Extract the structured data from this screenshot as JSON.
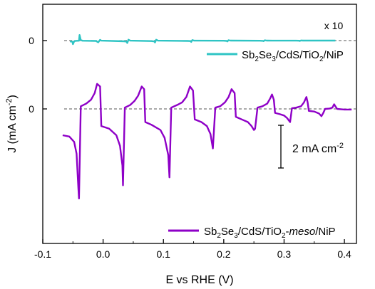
{
  "chart_data": {
    "type": "line",
    "xlabel": "E vs RHE (V)",
    "ylabel": "J (mA cm⁻²)",
    "xlim": [
      -0.1,
      0.42
    ],
    "x_ticks": [
      "-0.1",
      "0.0",
      "0.1",
      "0.2",
      "0.3",
      "0.4"
    ],
    "x_tick_values": [
      -0.1,
      0.0,
      0.1,
      0.2,
      0.3,
      0.4
    ],
    "y_ticks": [
      "0",
      "0"
    ],
    "multiplier_label": "x 10",
    "scale_bar_label": "2 mA cm⁻²",
    "scale_bar_value": 2,
    "zero_lines": "dashed",
    "series": [
      {
        "name": "Sb2Se3/CdS/TiO2/NiP",
        "legend": {
          "parts": [
            {
              "t": "Sb",
              "s": false
            },
            {
              "t": "2",
              "s": true
            },
            {
              "t": "Se",
              "s": false
            },
            {
              "t": "3",
              "s": true
            },
            {
              "t": "/CdS/TiO",
              "s": false
            },
            {
              "t": "2",
              "s": true
            },
            {
              "t": "/NiP",
              "s": false
            }
          ]
        },
        "color": "#2ec4c4",
        "baseline": 0,
        "scale": 10,
        "points": [
          [
            -0.055,
            -0.1
          ],
          [
            -0.051,
            -0.12
          ],
          [
            -0.05,
            -0.42
          ],
          [
            -0.048,
            -0.1
          ],
          [
            -0.046,
            -0.03
          ],
          [
            -0.04,
            -0.02
          ],
          [
            -0.039,
            0.65
          ],
          [
            -0.037,
            0.05
          ],
          [
            -0.034,
            -0.02
          ],
          [
            -0.012,
            -0.04
          ],
          [
            -0.008,
            -0.2
          ],
          [
            -0.005,
            0.08
          ],
          [
            -0.003,
            -0.01
          ],
          [
            0.035,
            -0.08
          ],
          [
            0.039,
            -0.12
          ],
          [
            0.04,
            -0.28
          ],
          [
            0.042,
            0.1
          ],
          [
            0.045,
            -0.01
          ],
          [
            0.08,
            -0.06
          ],
          [
            0.085,
            -0.1
          ],
          [
            0.086,
            -0.22
          ],
          [
            0.088,
            0.1
          ],
          [
            0.091,
            -0.01
          ],
          [
            0.14,
            -0.04
          ],
          [
            0.145,
            -0.06
          ],
          [
            0.146,
            -0.16
          ],
          [
            0.148,
            0.06
          ],
          [
            0.151,
            -0.01
          ],
          [
            0.2,
            -0.02
          ],
          [
            0.205,
            -0.04
          ],
          [
            0.206,
            -0.1
          ],
          [
            0.208,
            0.04
          ],
          [
            0.211,
            0.0
          ],
          [
            0.26,
            -0.02
          ],
          [
            0.265,
            -0.03
          ],
          [
            0.266,
            -0.07
          ],
          [
            0.268,
            0.03
          ],
          [
            0.271,
            0.0
          ],
          [
            0.32,
            -0.01
          ],
          [
            0.325,
            -0.02
          ],
          [
            0.326,
            -0.05
          ],
          [
            0.328,
            0.02
          ],
          [
            0.331,
            0.0
          ],
          [
            0.385,
            0.0
          ]
        ]
      },
      {
        "name": "Sb2Se3/CdS/TiO2-meso/NiP",
        "legend": {
          "parts": [
            {
              "t": "Sb",
              "s": false
            },
            {
              "t": "2",
              "s": true
            },
            {
              "t": "Se",
              "s": false
            },
            {
              "t": "3",
              "s": true
            },
            {
              "t": "/CdS/TiO",
              "s": false
            },
            {
              "t": "2",
              "s": true
            },
            {
              "t": "-",
              "s": false
            },
            {
              "t": "meso",
              "s": false,
              "i": true
            },
            {
              "t": "/NiP",
              "s": false
            }
          ]
        },
        "color": "#8e00c7",
        "baseline": 0,
        "scale": 1,
        "segments": [
          {
            "start": [
              -0.067,
              -2.0
            ],
            "pts": [
              [
                -0.056,
                -2.1
              ],
              [
                -0.048,
                -2.5
              ],
              [
                -0.044,
                -3.4
              ],
              [
                -0.041,
                -6.0
              ],
              [
                -0.04,
                -6.8
              ]
            ]
          },
          {
            "start": [
              -0.037,
              0.2
            ],
            "pts": [
              [
                -0.028,
                0.4
              ],
              [
                -0.02,
                0.7
              ],
              [
                -0.014,
                1.2
              ],
              [
                -0.01,
                1.9
              ],
              [
                -0.005,
                1.7
              ],
              [
                -0.003,
                -1.3
              ],
              [
                0.01,
                -1.5
              ],
              [
                0.022,
                -2.0
              ],
              [
                0.028,
                -2.8
              ],
              [
                0.032,
                -4.3
              ],
              [
                0.033,
                -5.8
              ]
            ]
          },
          {
            "start": [
              0.036,
              0.1
            ],
            "pts": [
              [
                0.045,
                0.3
              ],
              [
                0.052,
                0.6
              ],
              [
                0.058,
                1.0
              ],
              [
                0.064,
                1.7
              ],
              [
                0.068,
                1.5
              ],
              [
                0.07,
                -1.0
              ],
              [
                0.08,
                -1.2
              ],
              [
                0.095,
                -1.6
              ],
              [
                0.102,
                -2.2
              ],
              [
                0.108,
                -3.5
              ],
              [
                0.11,
                -5.2
              ]
            ]
          },
          {
            "start": [
              0.113,
              0.1
            ],
            "pts": [
              [
                0.123,
                0.3
              ],
              [
                0.131,
                0.5
              ],
              [
                0.138,
                0.9
              ],
              [
                0.144,
                1.7
              ],
              [
                0.149,
                1.4
              ],
              [
                0.152,
                -0.8
              ],
              [
                0.163,
                -1.0
              ],
              [
                0.172,
                -1.3
              ],
              [
                0.178,
                -1.9
              ],
              [
                0.182,
                -3.0
              ]
            ]
          },
          {
            "start": [
              0.186,
              0.1
            ],
            "pts": [
              [
                0.194,
                0.2
              ],
              [
                0.202,
                0.5
              ],
              [
                0.208,
                0.9
              ],
              [
                0.213,
                1.5
              ],
              [
                0.218,
                1.2
              ],
              [
                0.22,
                -0.6
              ],
              [
                0.23,
                -0.8
              ],
              [
                0.24,
                -1.0
              ],
              [
                0.246,
                -1.3
              ],
              [
                0.25,
                -1.6
              ],
              [
                0.252,
                -1.5
              ]
            ]
          },
          {
            "start": [
              0.256,
              0.1
            ],
            "pts": [
              [
                0.264,
                0.2
              ],
              [
                0.272,
                0.4
              ],
              [
                0.277,
                0.8
              ],
              [
                0.28,
                1.1
              ],
              [
                0.283,
                0.7
              ],
              [
                0.285,
                -0.3
              ],
              [
                0.293,
                -0.4
              ],
              [
                0.3,
                -0.5
              ],
              [
                0.305,
                -0.7
              ],
              [
                0.31,
                -1.0
              ]
            ]
          },
          {
            "start": [
              0.313,
              0.05
            ],
            "pts": [
              [
                0.32,
                0.1
              ],
              [
                0.328,
                0.2
              ],
              [
                0.333,
                0.5
              ],
              [
                0.337,
                0.9
              ],
              [
                0.339,
                0.5
              ],
              [
                0.341,
                -0.15
              ],
              [
                0.35,
                -0.2
              ],
              [
                0.358,
                -0.35
              ],
              [
                0.362,
                -0.55
              ],
              [
                0.365,
                -0.3
              ]
            ]
          },
          {
            "start": [
              0.368,
              0.0
            ],
            "pts": [
              [
                0.375,
                0.02
              ],
              [
                0.38,
                0.1
              ],
              [
                0.383,
                0.35
              ],
              [
                0.385,
                0.2
              ],
              [
                0.388,
                0.0
              ],
              [
                0.4,
                -0.05
              ],
              [
                0.412,
                -0.05
              ]
            ]
          }
        ]
      }
    ]
  }
}
